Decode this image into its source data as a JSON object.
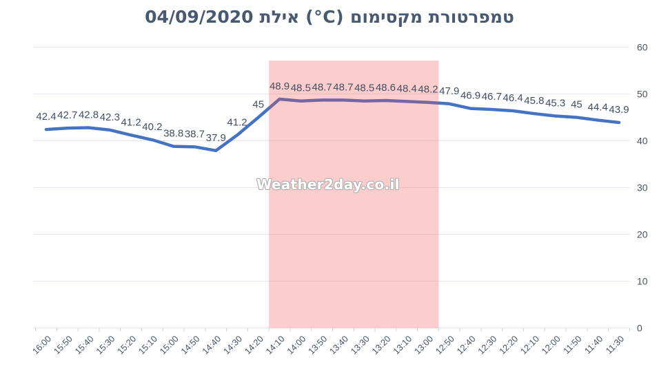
{
  "chart_data": {
    "type": "line",
    "title": "טמפרטורת מקסימום (°C)  אילת 04/09/2020",
    "title_parts": {
      "metric": "טמפרטורת מקסימום",
      "unit": "(°C)",
      "city": "אילת",
      "date": "04/09/2020"
    },
    "watermark": "Weather2day.co.il",
    "categories": [
      "16:00",
      "15:50",
      "15:40",
      "15:30",
      "15:20",
      "15:10",
      "15:00",
      "14:50",
      "14:40",
      "14:30",
      "14:20",
      "14:10",
      "14:00",
      "13:50",
      "13:40",
      "13:30",
      "13:20",
      "13:10",
      "13:00",
      "12:50",
      "12:40",
      "12:30",
      "12:20",
      "12:10",
      "12:00",
      "11:50",
      "11:40",
      "11:30"
    ],
    "values": [
      42.4,
      42.7,
      42.8,
      42.3,
      41.2,
      40.2,
      38.8,
      38.7,
      37.9,
      41.2,
      45,
      48.9,
      48.5,
      48.7,
      48.7,
      48.5,
      48.6,
      48.4,
      48.2,
      47.9,
      46.9,
      46.7,
      46.4,
      45.8,
      45.3,
      45,
      44.4,
      43.9
    ],
    "point_labels": [
      "42.4",
      "42.7",
      "42.8",
      "42.3",
      "41.2",
      "40.2",
      "38.8",
      "38.7",
      "37.9",
      "41.2",
      "45",
      "48.9",
      "48.5",
      "48.7",
      "48.7",
      "48.5",
      "48.6",
      "48.4",
      "48.2",
      "47.9",
      "46.9",
      "46.7",
      "46.4",
      "45.8",
      "45.3",
      "45",
      "44.4",
      "43.9"
    ],
    "ylim": [
      0,
      60
    ],
    "yticks": [
      60,
      50,
      40,
      30,
      20,
      10,
      0
    ],
    "y_axis_side": "right",
    "grid": true,
    "legend": "none",
    "xlabel": "",
    "ylabel": "",
    "colors": {
      "line": "#4472C4",
      "title": "#485A71",
      "data_label": "#404F63",
      "x_axis_label": "#44546A",
      "y_axis_label": "#4A5364",
      "gridline": "#E3E7ED",
      "tick": "#CBD2DB",
      "highlight_band": "rgba(244,70,70,0.27)",
      "background": "#FFFFFF"
    },
    "highlight_band": {
      "from": "14:10",
      "to": "13:00"
    }
  }
}
